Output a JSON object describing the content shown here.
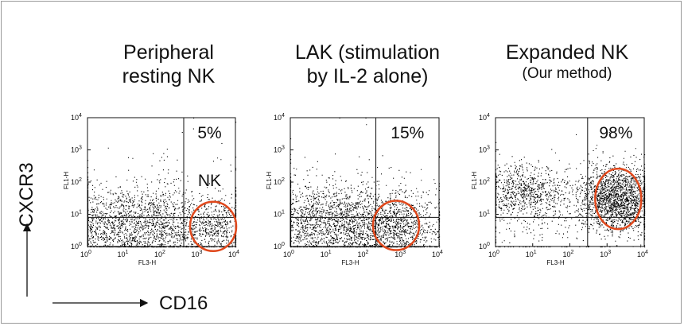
{
  "figure": {
    "y_axis_label": "CXCR3",
    "x_axis_label": "CD16"
  },
  "chart_data": [
    {
      "type": "scatter",
      "title_line1": "Peripheral",
      "title_line2": "resting NK",
      "title_size": "big",
      "xlabel": "FL3-H",
      "ylabel": "FL1-H",
      "x_scale": "log",
      "y_scale": "log",
      "xlim": [
        1,
        10000
      ],
      "ylim": [
        1,
        10000
      ],
      "tick_values": [
        1,
        10,
        100,
        1000,
        10000
      ],
      "tick_labels": [
        "10^0",
        "10^1",
        "10^2",
        "10^3",
        "10^4"
      ],
      "gate_x": 400,
      "gate_y": 8,
      "gate_percent_label": "5%",
      "gate_population_label": "NK",
      "circle_center": [
        2500,
        4.2
      ],
      "clusters": [
        {
          "center": [
            9,
            4.5
          ],
          "spread": [
            1.6,
            0.6
          ],
          "n": 2200
        },
        {
          "center": [
            2600,
            4.2
          ],
          "spread": [
            0.45,
            0.35
          ],
          "n": 300
        },
        {
          "center": [
            60,
            4
          ],
          "spread": [
            0.9,
            0.7
          ],
          "n": 250
        },
        {
          "center": [
            200,
            3
          ],
          "spread": [
            1.5,
            1.2
          ],
          "n": 250
        }
      ]
    },
    {
      "type": "scatter",
      "title_line1": "LAK (stimulation",
      "title_line2": "by IL-2 alone)",
      "title_size": "big",
      "xlabel": "FL3-H",
      "ylabel": "FL1-H",
      "x_scale": "log",
      "y_scale": "log",
      "xlim": [
        1,
        10000
      ],
      "ylim": [
        1,
        10000
      ],
      "tick_values": [
        1,
        10,
        100,
        1000,
        10000
      ],
      "tick_labels": [
        "10^0",
        "10^1",
        "10^2",
        "10^3",
        "10^4"
      ],
      "gate_x": 200,
      "gate_y": 8,
      "gate_percent_label": "15%",
      "gate_population_label": "",
      "circle_center": [
        700,
        4.5
      ],
      "clusters": [
        {
          "center": [
            8,
            4.5
          ],
          "spread": [
            1.3,
            0.65
          ],
          "n": 2000
        },
        {
          "center": [
            700,
            4.5
          ],
          "spread": [
            0.6,
            0.45
          ],
          "n": 600
        },
        {
          "center": [
            60,
            5
          ],
          "spread": [
            0.9,
            0.6
          ],
          "n": 400
        },
        {
          "center": [
            100,
            5
          ],
          "spread": [
            1.6,
            1.2
          ],
          "n": 200
        }
      ]
    },
    {
      "type": "scatter",
      "title_line1": "Expanded NK",
      "title_line2": "(Our method)",
      "title_size": "mixed",
      "xlabel": "FL3-H",
      "ylabel": "FL1-H",
      "x_scale": "log",
      "y_scale": "log",
      "xlim": [
        1,
        10000
      ],
      "ylim": [
        1,
        10000
      ],
      "tick_values": [
        1,
        10,
        100,
        1000,
        10000
      ],
      "tick_labels": [
        "10^0",
        "10^1",
        "10^2",
        "10^3",
        "10^4"
      ],
      "gate_x": 300,
      "gate_y": 8,
      "gate_percent_label": "98%",
      "gate_population_label": "",
      "circle_center": [
        2000,
        30
      ],
      "clusters": [
        {
          "center": [
            2000,
            30
          ],
          "spread": [
            0.5,
            0.5
          ],
          "n": 1800
        },
        {
          "center": [
            5,
            50
          ],
          "spread": [
            0.6,
            0.4
          ],
          "n": 700
        },
        {
          "center": [
            150,
            40
          ],
          "spread": [
            1.1,
            0.6
          ],
          "n": 300
        },
        {
          "center": [
            8,
            3
          ],
          "spread": [
            1.3,
            0.8
          ],
          "n": 160
        }
      ]
    }
  ]
}
